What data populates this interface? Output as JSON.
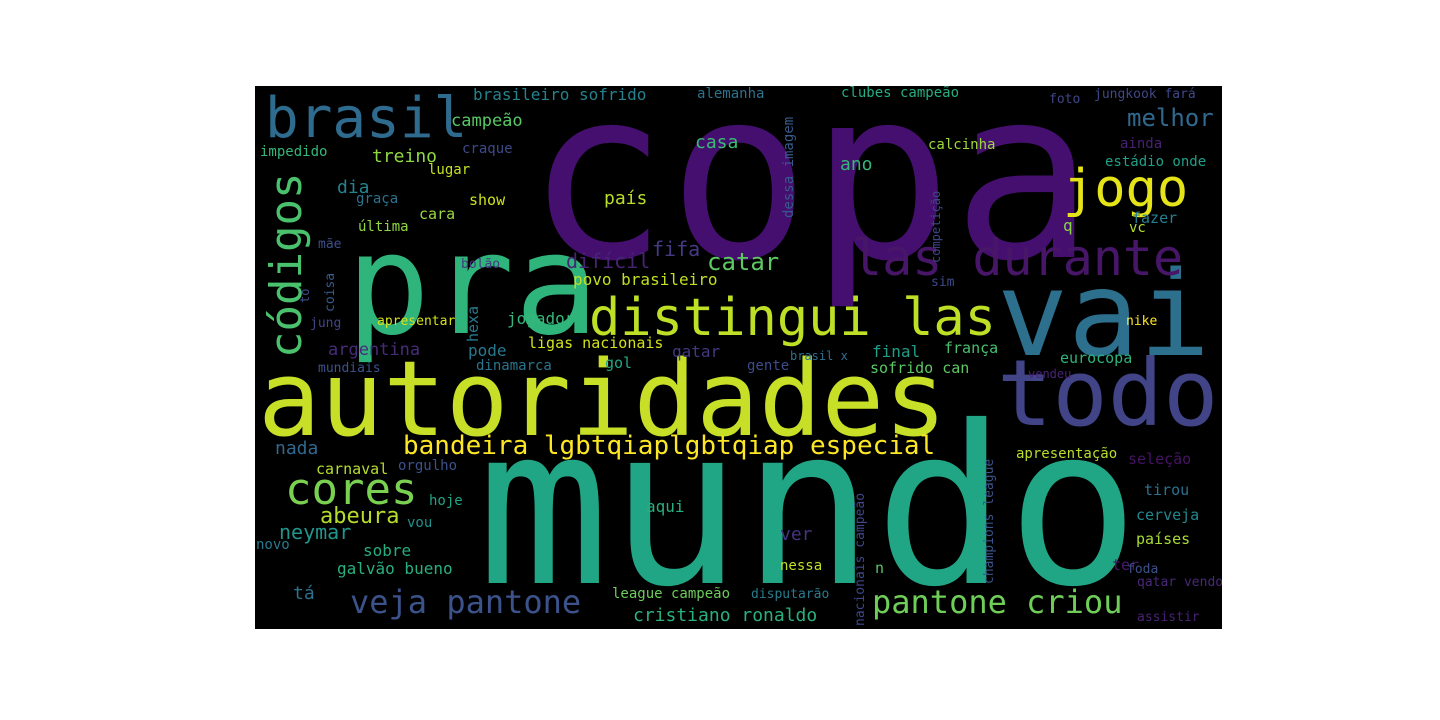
{
  "words": [
    {
      "text": "copa",
      "color": "#440f6e"
    },
    {
      "text": "mundo",
      "color": "#21a685"
    },
    {
      "text": "autoridades",
      "color": "#c8df28"
    },
    {
      "text": "pra",
      "color": "#2fb47c"
    },
    {
      "text": "vai",
      "color": "#2d708e"
    },
    {
      "text": "todo",
      "color": "#414487"
    },
    {
      "text": "distingui las",
      "color": "#bddf26"
    },
    {
      "text": "las durante",
      "color": "#481668"
    },
    {
      "text": "jogo",
      "color": "#e5e419"
    },
    {
      "text": "brasil",
      "color": "#2f6b8e"
    },
    {
      "text": "códigos",
      "color": "#4ac16d"
    },
    {
      "text": "cores",
      "color": "#7ad151"
    },
    {
      "text": "bandeira lgbtqiaplgbtqiap especial",
      "color": "#fde725"
    },
    {
      "text": "pantone criou",
      "color": "#6ece58"
    },
    {
      "text": "veja pantone",
      "color": "#3b528b"
    },
    {
      "text": "melhor",
      "color": "#31688e"
    },
    {
      "text": "catar",
      "color": "#5ec962"
    },
    {
      "text": "abeura",
      "color": "#b5de2b"
    },
    {
      "text": "neymar",
      "color": "#1f958b"
    },
    {
      "text": "cristiano ronaldo",
      "color": "#2ab07f"
    },
    {
      "text": "brasileiro sofrido",
      "color": "#26828e"
    },
    {
      "text": "campeão",
      "color": "#58c765"
    },
    {
      "text": "treino",
      "color": "#8fd744"
    },
    {
      "text": "dia",
      "color": "#25838e"
    },
    {
      "text": "casa",
      "color": "#3bbb75"
    },
    {
      "text": "ano",
      "color": "#35b779"
    },
    {
      "text": "país",
      "color": "#b8de29"
    },
    {
      "text": "fifa",
      "color": "#443a83"
    },
    {
      "text": "difícil",
      "color": "#482475"
    },
    {
      "text": "povo brasileiro",
      "color": "#c2df23"
    },
    {
      "text": "jogador",
      "color": "#35b779"
    },
    {
      "text": "argentina",
      "color": "#472c7a"
    },
    {
      "text": "pode",
      "color": "#2a788e"
    },
    {
      "text": "ligas nacionais",
      "color": "#d2e21b"
    },
    {
      "text": "qatar",
      "color": "#453781"
    },
    {
      "text": "gol",
      "color": "#22a884"
    },
    {
      "text": "final",
      "color": "#1f9e89"
    },
    {
      "text": "sofrido can",
      "color": "#5cc863"
    },
    {
      "text": "frança",
      "color": "#46c06f"
    },
    {
      "text": "eurocopa",
      "color": "#2eb37c"
    },
    {
      "text": "nada",
      "color": "#31688e"
    },
    {
      "text": "carnaval",
      "color": "#b5de2b"
    },
    {
      "text": "orgulho",
      "color": "#3b528b"
    },
    {
      "text": "aqui",
      "color": "#29af7f"
    },
    {
      "text": "ver",
      "color": "#46327e"
    },
    {
      "text": "sobre",
      "color": "#26ad81"
    },
    {
      "text": "galvão bueno",
      "color": "#2ab07f"
    },
    {
      "text": "tá",
      "color": "#2c728e"
    },
    {
      "text": "vou",
      "color": "#21918c"
    },
    {
      "text": "hoje",
      "color": "#20a486"
    },
    {
      "text": "novo",
      "color": "#29798e"
    },
    {
      "text": "nessa",
      "color": "#c0df25"
    },
    {
      "text": "n",
      "color": "#58c765"
    },
    {
      "text": "ter",
      "color": "#481a6c"
    },
    {
      "text": "seleção",
      "color": "#471365"
    },
    {
      "text": "apresentação",
      "color": "#b8de29"
    },
    {
      "text": "tirou",
      "color": "#2c718e"
    },
    {
      "text": "cerveja",
      "color": "#23888e"
    },
    {
      "text": "países",
      "color": "#a8db34"
    },
    {
      "text": "foda",
      "color": "#3b528b"
    },
    {
      "text": "qatar vendo",
      "color": "#482878"
    },
    {
      "text": "assistir",
      "color": "#482173"
    },
    {
      "text": "league campeão",
      "color": "#6ccd5a"
    },
    {
      "text": "disputarão",
      "color": "#297b8e"
    },
    {
      "text": "alemanha",
      "color": "#2d718e"
    },
    {
      "text": "clubes campeão",
      "color": "#26ad81"
    },
    {
      "text": "foto",
      "color": "#404688"
    },
    {
      "text": "jungkook fará",
      "color": "#3f4889"
    },
    {
      "text": "impedido",
      "color": "#35b779"
    },
    {
      "text": "craque",
      "color": "#3e4989"
    },
    {
      "text": "lugar",
      "color": "#c5e021"
    },
    {
      "text": "calcinha",
      "color": "#9dd93b"
    },
    {
      "text": "ainda",
      "color": "#482173"
    },
    {
      "text": "estádio onde",
      "color": "#1fa088"
    },
    {
      "text": "fazer",
      "color": "#277f8e"
    },
    {
      "text": "q",
      "color": "#8bd646"
    },
    {
      "text": "vc",
      "color": "#b2dd2d"
    },
    {
      "text": "graça",
      "color": "#2c728e"
    },
    {
      "text": "show",
      "color": "#cde11d"
    },
    {
      "text": "cara",
      "color": "#99d83e"
    },
    {
      "text": "última",
      "color": "#92d741"
    },
    {
      "text": "mãe",
      "color": "#3d4e8a"
    },
    {
      "text": "bolão",
      "color": "#453882"
    },
    {
      "text": "jung",
      "color": "#414487"
    },
    {
      "text": "apresentar",
      "color": "#d5e21a"
    },
    {
      "text": "sim",
      "color": "#3e4a89"
    },
    {
      "text": "nike",
      "color": "#fde725"
    },
    {
      "text": "mundiais",
      "color": "#3b528b"
    },
    {
      "text": "dinamarca",
      "color": "#2b748e"
    },
    {
      "text": "gente",
      "color": "#3e4c8a"
    },
    {
      "text": "brasil x",
      "color": "#2d708e"
    },
    {
      "text": "vendeu",
      "color": "#482475"
    },
    {
      "text": "hexa",
      "color": "#2a788e"
    },
    {
      "text": "coisa",
      "color": "#375b8d"
    },
    {
      "text": "to",
      "color": "#3d4e8a"
    },
    {
      "text": "dessa imagem",
      "color": "#375a8c"
    },
    {
      "text": "competição",
      "color": "#3f4889"
    },
    {
      "text": "champions league",
      "color": "#3a548c"
    },
    {
      "text": "nacionais campeão",
      "color": "#3f4788"
    }
  ]
}
